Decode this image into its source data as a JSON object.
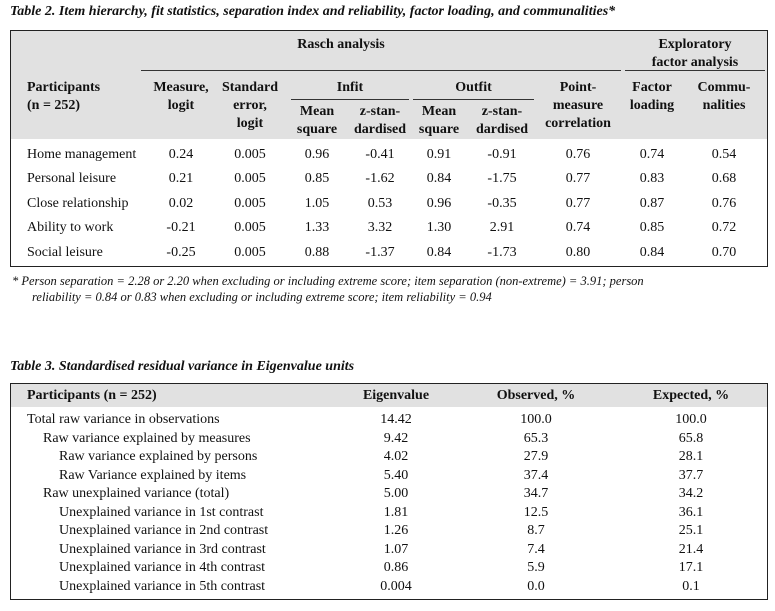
{
  "table2": {
    "caption": "Table 2. Item hierarchy, fit statistics, separation index and reliability, factor loading, and communalities*",
    "group_rasch": "Rasch analysis",
    "group_efa_line1": "Exploratory",
    "group_efa_line2": "factor analysis",
    "col_participants_line1": "Participants",
    "col_participants_line2": "(n = 252)",
    "col_measure_line1": "Measure,",
    "col_measure_line2": "logit",
    "col_se_line1": "Standard",
    "col_se_line2": "error,",
    "col_se_line3": "logit",
    "col_infit": "Infit",
    "col_outfit": "Outfit",
    "col_mean_line1": "Mean",
    "col_mean_line2": "square",
    "col_z_line1": "z-stan-",
    "col_z_line2": "dardised",
    "col_pm_line1": "Point-",
    "col_pm_line2": "measure",
    "col_pm_line3": "correlation",
    "col_fl_line1": "Factor",
    "col_fl_line2": "loading",
    "col_comm_line1": "Commu-",
    "col_comm_line2": "nalities",
    "rows": [
      {
        "label": "Home management",
        "measure": "0.24",
        "se": "0.005",
        "infit_ms": "0.96",
        "infit_z": "-0.41",
        "outfit_ms": "0.91",
        "outfit_z": "-0.91",
        "pm": "0.76",
        "fl": "0.74",
        "comm": "0.54"
      },
      {
        "label": "Personal leisure",
        "measure": "0.21",
        "se": "0.005",
        "infit_ms": "0.85",
        "infit_z": "-1.62",
        "outfit_ms": "0.84",
        "outfit_z": "-1.75",
        "pm": "0.77",
        "fl": "0.83",
        "comm": "0.68"
      },
      {
        "label": "Close relationship",
        "measure": "0.02",
        "se": "0.005",
        "infit_ms": "1.05",
        "infit_z": "0.53",
        "outfit_ms": "0.96",
        "outfit_z": "-0.35",
        "pm": "0.77",
        "fl": "0.87",
        "comm": "0.76"
      },
      {
        "label": "Ability to work",
        "measure": "-0.21",
        "se": "0.005",
        "infit_ms": "1.33",
        "infit_z": "3.32",
        "outfit_ms": "1.30",
        "outfit_z": "2.91",
        "pm": "0.74",
        "fl": "0.85",
        "comm": "0.72"
      },
      {
        "label": "Social leisure",
        "measure": "-0.25",
        "se": "0.005",
        "infit_ms": "0.88",
        "infit_z": "-1.37",
        "outfit_ms": "0.84",
        "outfit_z": "-1.73",
        "pm": "0.80",
        "fl": "0.84",
        "comm": "0.70"
      }
    ],
    "footnote_line1": "*    Person separation = 2.28 or 2.20 when excluding or including extreme score; item separation (non-extreme) = 3.91; person",
    "footnote_line2": "reliability = 0.84 or 0.83 when excluding or including extreme score; item reliability = 0.94"
  },
  "table3": {
    "caption": "Table 3. Standardised residual variance in Eigenvalue units",
    "col_participants": "Participants (n = 252)",
    "col_eigen": "Eigenvalue",
    "col_observed": "Observed, %",
    "col_expected": "Expected, %",
    "rows": [
      {
        "label": "Total raw variance in observations",
        "indent": 0,
        "eigen": "14.42",
        "observed": "100.0",
        "expected": "100.0"
      },
      {
        "label": "Raw variance explained by measures",
        "indent": 1,
        "eigen": "9.42",
        "observed": "65.3",
        "expected": "65.8"
      },
      {
        "label": "Raw variance explained by persons",
        "indent": 2,
        "eigen": "4.02",
        "observed": "27.9",
        "expected": "28.1"
      },
      {
        "label": "Raw Variance explained by items",
        "indent": 2,
        "eigen": "5.40",
        "observed": "37.4",
        "expected": "37.7"
      },
      {
        "label": "Raw unexplained variance (total)",
        "indent": 1,
        "eigen": "5.00",
        "observed": "34.7",
        "expected": "34.2"
      },
      {
        "label": "Unexplained variance in 1st contrast",
        "indent": 2,
        "eigen": "1.81",
        "observed": "12.5",
        "expected": "36.1"
      },
      {
        "label": "Unexplained variance in 2nd contrast",
        "indent": 2,
        "eigen": "1.26",
        "observed": "8.7",
        "expected": "25.1"
      },
      {
        "label": "Unexplained variance in 3rd contrast",
        "indent": 2,
        "eigen": "1.07",
        "observed": "7.4",
        "expected": "21.4"
      },
      {
        "label": "Unexplained variance in 4th contrast",
        "indent": 2,
        "eigen": "0.86",
        "observed": "5.9",
        "expected": "17.1"
      },
      {
        "label": "Unexplained variance in 5th contrast",
        "indent": 2,
        "eigen": "0.004",
        "observed": "0.0",
        "expected": "0.1"
      }
    ]
  }
}
